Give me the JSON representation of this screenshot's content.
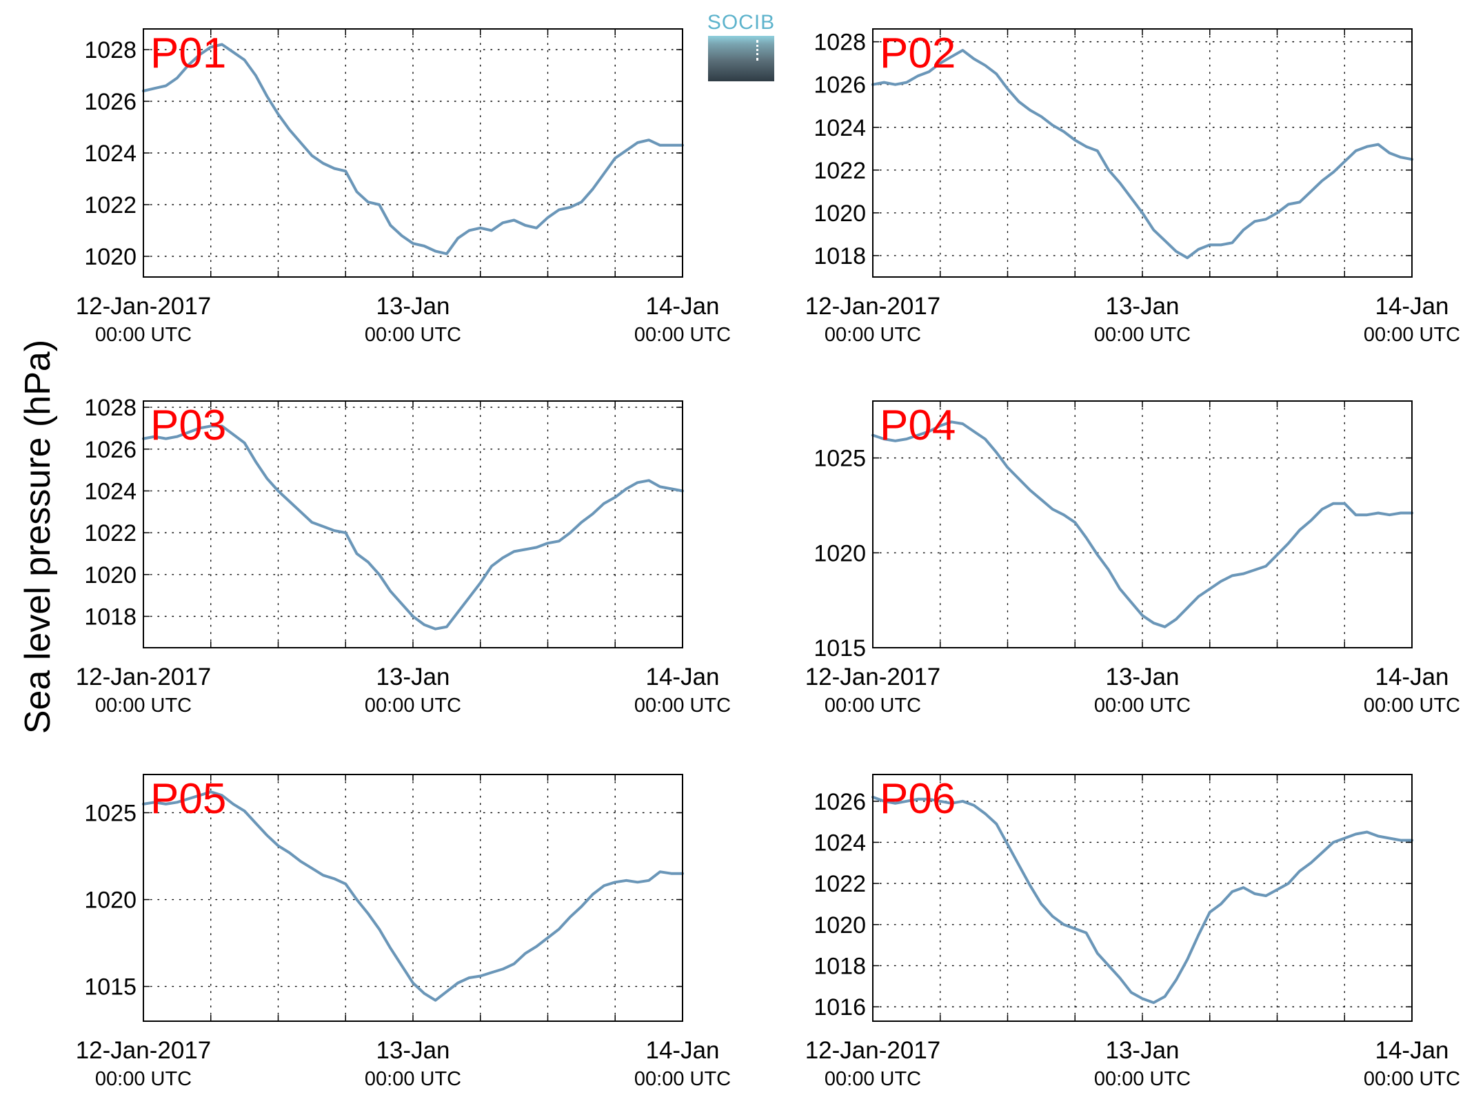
{
  "figure": {
    "ylabel": "Sea level pressure (hPa)",
    "logo_text": "SOCIB",
    "colors": {
      "line": "#6a96b8",
      "panel_label": "#ff0000",
      "grid": "#000000"
    }
  },
  "chart_data": [
    {
      "type": "line",
      "title": "P01",
      "x_ticks": [
        "12-Jan-2017|00:00 UTC",
        "13-Jan|00:00 UTC",
        "14-Jan|00:00 UTC"
      ],
      "xlim": [
        0,
        48
      ],
      "ylim": [
        1019.2,
        1028.8
      ],
      "yticks": [
        1020,
        1022,
        1024,
        1026,
        1028
      ],
      "grid": true,
      "series": [
        {
          "x": [
            0,
            1,
            2,
            3,
            4,
            5,
            6,
            7,
            8,
            9,
            10,
            11,
            12,
            13,
            14,
            15,
            16,
            17,
            18,
            19,
            20,
            21,
            22,
            23,
            24,
            25,
            26,
            27,
            28,
            29,
            30,
            31,
            32,
            33,
            34,
            35,
            36,
            37,
            38,
            39,
            40,
            41,
            42,
            43,
            44,
            45,
            46,
            47,
            48
          ],
          "y": [
            1026.4,
            1026.5,
            1026.6,
            1026.9,
            1027.4,
            1027.8,
            1028.1,
            1028.2,
            1027.9,
            1027.6,
            1027.0,
            1026.2,
            1025.5,
            1024.9,
            1024.4,
            1023.9,
            1023.6,
            1023.4,
            1023.3,
            1022.5,
            1022.1,
            1022.0,
            1021.2,
            1020.8,
            1020.5,
            1020.4,
            1020.2,
            1020.1,
            1020.7,
            1021.0,
            1021.1,
            1021.0,
            1021.3,
            1021.4,
            1021.2,
            1021.1,
            1021.5,
            1021.8,
            1021.9,
            1022.1,
            1022.6,
            1023.2,
            1023.8,
            1024.1,
            1024.4,
            1024.5,
            1024.3,
            1024.3,
            1024.3
          ]
        }
      ]
    },
    {
      "type": "line",
      "title": "P02",
      "x_ticks": [
        "12-Jan-2017|00:00 UTC",
        "13-Jan|00:00 UTC",
        "14-Jan|00:00 UTC"
      ],
      "xlim": [
        0,
        48
      ],
      "ylim": [
        1017.0,
        1028.6
      ],
      "yticks": [
        1018,
        1020,
        1022,
        1024,
        1026,
        1028
      ],
      "grid": true,
      "series": [
        {
          "x": [
            0,
            1,
            2,
            3,
            4,
            5,
            6,
            7,
            8,
            9,
            10,
            11,
            12,
            13,
            14,
            15,
            16,
            17,
            18,
            19,
            20,
            21,
            22,
            23,
            24,
            25,
            26,
            27,
            28,
            29,
            30,
            31,
            32,
            33,
            34,
            35,
            36,
            37,
            38,
            39,
            40,
            41,
            42,
            43,
            44,
            45,
            46,
            47,
            48
          ],
          "y": [
            1026.0,
            1026.1,
            1026.0,
            1026.1,
            1026.4,
            1026.6,
            1027.0,
            1027.3,
            1027.6,
            1027.2,
            1026.9,
            1026.5,
            1025.8,
            1025.2,
            1024.8,
            1024.5,
            1024.1,
            1023.8,
            1023.4,
            1023.1,
            1022.9,
            1022.0,
            1021.4,
            1020.7,
            1020.0,
            1019.2,
            1018.7,
            1018.2,
            1017.9,
            1018.3,
            1018.5,
            1018.5,
            1018.6,
            1019.2,
            1019.6,
            1019.7,
            1020.0,
            1020.4,
            1020.5,
            1021.0,
            1021.5,
            1021.9,
            1022.4,
            1022.9,
            1023.1,
            1023.2,
            1022.8,
            1022.6,
            1022.5
          ]
        }
      ]
    },
    {
      "type": "line",
      "title": "P03",
      "x_ticks": [
        "12-Jan-2017|00:00 UTC",
        "13-Jan|00:00 UTC",
        "14-Jan|00:00 UTC"
      ],
      "xlim": [
        0,
        48
      ],
      "ylim": [
        1016.5,
        1028.3
      ],
      "yticks": [
        1018,
        1020,
        1022,
        1024,
        1026,
        1028
      ],
      "grid": true,
      "series": [
        {
          "x": [
            0,
            1,
            2,
            3,
            4,
            5,
            6,
            7,
            8,
            9,
            10,
            11,
            12,
            13,
            14,
            15,
            16,
            17,
            18,
            19,
            20,
            21,
            22,
            23,
            24,
            25,
            26,
            27,
            28,
            29,
            30,
            31,
            32,
            33,
            34,
            35,
            36,
            37,
            38,
            39,
            40,
            41,
            42,
            43,
            44,
            45,
            46,
            47,
            48
          ],
          "y": [
            1026.5,
            1026.6,
            1026.5,
            1026.6,
            1026.8,
            1027.0,
            1027.1,
            1027.1,
            1026.7,
            1026.3,
            1025.4,
            1024.6,
            1024.0,
            1023.5,
            1023.0,
            1022.5,
            1022.3,
            1022.1,
            1022.0,
            1021.0,
            1020.6,
            1020.0,
            1019.2,
            1018.6,
            1018.0,
            1017.6,
            1017.4,
            1017.5,
            1018.2,
            1018.9,
            1019.6,
            1020.4,
            1020.8,
            1021.1,
            1021.2,
            1021.3,
            1021.5,
            1021.6,
            1022.0,
            1022.5,
            1022.9,
            1023.4,
            1023.7,
            1024.1,
            1024.4,
            1024.5,
            1024.2,
            1024.1,
            1024.0
          ]
        }
      ]
    },
    {
      "type": "line",
      "title": "P04",
      "x_ticks": [
        "12-Jan-2017|00:00 UTC",
        "13-Jan|00:00 UTC",
        "14-Jan|00:00 UTC"
      ],
      "xlim": [
        0,
        48
      ],
      "ylim": [
        1015.0,
        1028.0
      ],
      "yticks": [
        1015,
        1020,
        1025
      ],
      "grid": true,
      "series": [
        {
          "x": [
            0,
            1,
            2,
            3,
            4,
            5,
            6,
            7,
            8,
            9,
            10,
            11,
            12,
            13,
            14,
            15,
            16,
            17,
            18,
            19,
            20,
            21,
            22,
            23,
            24,
            25,
            26,
            27,
            28,
            29,
            30,
            31,
            32,
            33,
            34,
            35,
            36,
            37,
            38,
            39,
            40,
            41,
            42,
            43,
            44,
            45,
            46,
            47,
            48
          ],
          "y": [
            1026.2,
            1026.0,
            1025.9,
            1026.0,
            1026.2,
            1026.4,
            1026.7,
            1026.9,
            1026.8,
            1026.4,
            1026.0,
            1025.3,
            1024.5,
            1023.9,
            1023.3,
            1022.8,
            1022.3,
            1022.0,
            1021.6,
            1020.8,
            1019.9,
            1019.1,
            1018.1,
            1017.4,
            1016.7,
            1016.3,
            1016.1,
            1016.5,
            1017.1,
            1017.7,
            1018.1,
            1018.5,
            1018.8,
            1018.9,
            1019.1,
            1019.3,
            1019.9,
            1020.5,
            1021.2,
            1021.7,
            1022.3,
            1022.6,
            1022.6,
            1022.0,
            1022.0,
            1022.1,
            1022.0,
            1022.1,
            1022.1
          ]
        }
      ]
    },
    {
      "type": "line",
      "title": "P05",
      "x_ticks": [
        "12-Jan-2017|00:00 UTC",
        "13-Jan|00:00 UTC",
        "14-Jan|00:00 UTC"
      ],
      "xlim": [
        0,
        48
      ],
      "ylim": [
        1013.0,
        1027.2
      ],
      "yticks": [
        1015,
        1020,
        1025
      ],
      "grid": true,
      "series": [
        {
          "x": [
            0,
            1,
            2,
            3,
            4,
            5,
            6,
            7,
            8,
            9,
            10,
            11,
            12,
            13,
            14,
            15,
            16,
            17,
            18,
            19,
            20,
            21,
            22,
            23,
            24,
            25,
            26,
            27,
            28,
            29,
            30,
            31,
            32,
            33,
            34,
            35,
            36,
            37,
            38,
            39,
            40,
            41,
            42,
            43,
            44,
            45,
            46,
            47,
            48
          ],
          "y": [
            1025.5,
            1025.6,
            1025.5,
            1025.6,
            1025.8,
            1026.0,
            1026.2,
            1026.0,
            1025.5,
            1025.1,
            1024.4,
            1023.7,
            1023.1,
            1022.7,
            1022.2,
            1021.8,
            1021.4,
            1021.2,
            1020.9,
            1020.0,
            1019.2,
            1018.3,
            1017.2,
            1016.2,
            1015.2,
            1014.6,
            1014.2,
            1014.7,
            1015.2,
            1015.5,
            1015.6,
            1015.8,
            1016.0,
            1016.3,
            1016.9,
            1017.3,
            1017.8,
            1018.3,
            1019.0,
            1019.6,
            1020.3,
            1020.8,
            1021.0,
            1021.1,
            1021.0,
            1021.1,
            1021.6,
            1021.5,
            1021.5
          ]
        }
      ]
    },
    {
      "type": "line",
      "title": "P06",
      "x_ticks": [
        "12-Jan-2017|00:00 UTC",
        "13-Jan|00:00 UTC",
        "14-Jan|00:00 UTC"
      ],
      "xlim": [
        0,
        48
      ],
      "ylim": [
        1015.3,
        1027.3
      ],
      "yticks": [
        1016,
        1018,
        1020,
        1022,
        1024,
        1026
      ],
      "grid": true,
      "series": [
        {
          "x": [
            0,
            1,
            2,
            3,
            4,
            5,
            6,
            7,
            8,
            9,
            10,
            11,
            12,
            13,
            14,
            15,
            16,
            17,
            18,
            19,
            20,
            21,
            22,
            23,
            24,
            25,
            26,
            27,
            28,
            29,
            30,
            31,
            32,
            33,
            34,
            35,
            36,
            37,
            38,
            39,
            40,
            41,
            42,
            43,
            44,
            45,
            46,
            47,
            48
          ],
          "y": [
            1026.2,
            1026.0,
            1025.9,
            1026.0,
            1026.1,
            1026.1,
            1026.0,
            1025.9,
            1026.0,
            1025.8,
            1025.4,
            1024.9,
            1023.9,
            1022.9,
            1021.9,
            1021.0,
            1020.4,
            1020.0,
            1019.8,
            1019.6,
            1018.6,
            1018.0,
            1017.4,
            1016.7,
            1016.4,
            1016.2,
            1016.5,
            1017.3,
            1018.3,
            1019.5,
            1020.6,
            1021.0,
            1021.6,
            1021.8,
            1021.5,
            1021.4,
            1021.7,
            1022.0,
            1022.6,
            1023.0,
            1023.5,
            1024.0,
            1024.2,
            1024.4,
            1024.5,
            1024.3,
            1024.2,
            1024.1,
            1024.1
          ]
        }
      ]
    }
  ]
}
